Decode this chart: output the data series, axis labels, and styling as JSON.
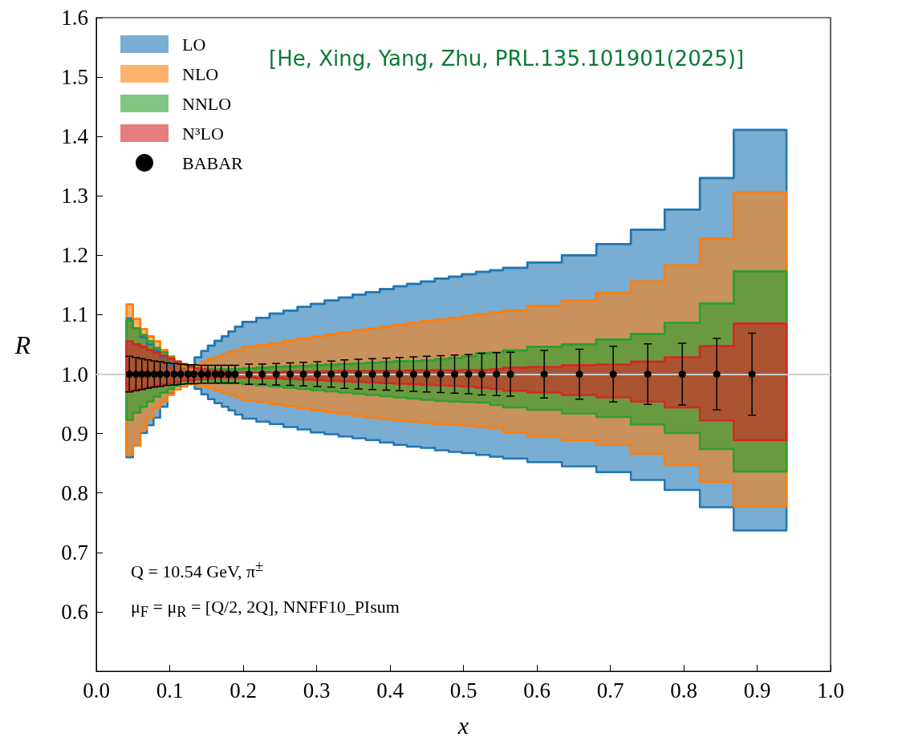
{
  "chart_data": {
    "type": "step",
    "xlabel": "x",
    "ylabel": "R",
    "annotations": [
      "[He, Xing, Yang, Zhu, PRL.135.101901(2025)]",
      "Q = 10.54 GeV, π$^{±}$",
      "μ$_{F}$ = μ$_{R}$ = [Q/2, 2Q], NNFF10_PIsum"
    ],
    "xlim": [
      0,
      1
    ],
    "ylim": [
      0.5,
      1.6
    ],
    "xticks": [
      {
        "value": 0,
        "label": "0.0"
      },
      {
        "value": 0.1,
        "label": "0.1"
      },
      {
        "value": 0.2,
        "label": "0.2"
      },
      {
        "value": 0.3,
        "label": "0.3"
      },
      {
        "value": 0.4,
        "label": "0.4"
      },
      {
        "value": 0.5,
        "label": "0.5"
      },
      {
        "value": 0.6,
        "label": "0.6"
      },
      {
        "value": 0.7,
        "label": "0.7"
      },
      {
        "value": 0.8,
        "label": "0.8"
      },
      {
        "value": 0.9,
        "label": "0.9"
      },
      {
        "value": 1,
        "label": "1.0"
      }
    ],
    "yticks": [
      {
        "value": 0.6,
        "label": "0.6"
      },
      {
        "value": 0.7,
        "label": "0.7"
      },
      {
        "value": 0.8,
        "label": "0.8"
      },
      {
        "value": 0.9,
        "label": "0.9"
      },
      {
        "value": 1,
        "label": "1.0"
      },
      {
        "value": 1.1,
        "label": "1.1"
      },
      {
        "value": 1.2,
        "label": "1.2"
      },
      {
        "value": 1.3,
        "label": "1.3"
      },
      {
        "value": 1.4,
        "label": "1.4"
      },
      {
        "value": 1.5,
        "label": "1.5"
      },
      {
        "value": 1.6,
        "label": "1.6"
      }
    ],
    "legend": "top left",
    "ref_lines": [
      {
        "axis": "y",
        "value": 1,
        "color": "#cccccc"
      }
    ],
    "series": [
      {
        "name": "LO",
        "color": "#1f77b4",
        "x": [
          0.041,
          0.05,
          0.06,
          0.069,
          0.078,
          0.087,
          0.097,
          0.106,
          0.115,
          0.124,
          0.134,
          0.143,
          0.152,
          0.161,
          0.171,
          0.18,
          0.189,
          0.199,
          0.218,
          0.236,
          0.255,
          0.274,
          0.292,
          0.311,
          0.33,
          0.349,
          0.367,
          0.386,
          0.405,
          0.423,
          0.442,
          0.461,
          0.48,
          0.498,
          0.517,
          0.536,
          0.554,
          0.587,
          0.634,
          0.681,
          0.728,
          0.774,
          0.822,
          0.868,
          0.94
        ],
        "values": [
          1.094,
          1.077,
          1.062,
          1.05,
          1.04,
          1.028,
          1.015,
          1.003,
          1.003,
          1.015,
          1.028,
          1.039,
          1.048,
          1.056,
          1.064,
          1.072,
          1.08,
          1.088,
          1.095,
          1.102,
          1.107,
          1.113,
          1.118,
          1.124,
          1.129,
          1.134,
          1.138,
          1.143,
          1.148,
          1.152,
          1.156,
          1.161,
          1.164,
          1.168,
          1.172,
          1.175,
          1.179,
          1.188,
          1.2,
          1.219,
          1.243,
          1.277,
          1.33,
          1.411,
          1.411
        ],
        "upper": [
          1.094,
          1.077,
          1.062,
          1.05,
          1.04,
          1.028,
          1.015,
          1.003,
          1.003,
          1.015,
          1.028,
          1.039,
          1.048,
          1.056,
          1.064,
          1.072,
          1.08,
          1.088,
          1.095,
          1.102,
          1.107,
          1.113,
          1.118,
          1.124,
          1.129,
          1.134,
          1.138,
          1.143,
          1.148,
          1.152,
          1.156,
          1.161,
          1.164,
          1.168,
          1.172,
          1.175,
          1.179,
          1.188,
          1.2,
          1.219,
          1.243,
          1.277,
          1.33,
          1.411,
          1.411
        ],
        "lower": [
          0.86,
          0.88,
          0.901,
          0.914,
          0.927,
          0.945,
          0.968,
          0.983,
          0.99,
          0.985,
          0.975,
          0.966,
          0.958,
          0.951,
          0.945,
          0.939,
          0.932,
          0.925,
          0.92,
          0.916,
          0.911,
          0.907,
          0.902,
          0.899,
          0.895,
          0.892,
          0.889,
          0.885,
          0.881,
          0.878,
          0.876,
          0.872,
          0.869,
          0.867,
          0.864,
          0.861,
          0.858,
          0.852,
          0.845,
          0.835,
          0.822,
          0.805,
          0.776,
          0.737,
          0.737
        ]
      },
      {
        "name": "NLO",
        "color": "#ff7f0e",
        "x": [
          0.041,
          0.05,
          0.06,
          0.069,
          0.078,
          0.087,
          0.097,
          0.106,
          0.115,
          0.124,
          0.134,
          0.143,
          0.152,
          0.161,
          0.171,
          0.18,
          0.189,
          0.199,
          0.218,
          0.236,
          0.255,
          0.274,
          0.292,
          0.311,
          0.33,
          0.349,
          0.367,
          0.386,
          0.405,
          0.423,
          0.442,
          0.461,
          0.48,
          0.498,
          0.517,
          0.536,
          0.554,
          0.587,
          0.634,
          0.681,
          0.728,
          0.774,
          0.822,
          0.868,
          0.94
        ],
        "values": [
          1.117,
          1.093,
          1.076,
          1.064,
          1.055,
          1.041,
          1.03,
          1.021,
          1.013,
          1.008,
          1.015,
          1.021,
          1.026,
          1.03,
          1.034,
          1.038,
          1.041,
          1.046,
          1.049,
          1.052,
          1.056,
          1.06,
          1.063,
          1.067,
          1.07,
          1.074,
          1.077,
          1.08,
          1.083,
          1.086,
          1.089,
          1.092,
          1.095,
          1.098,
          1.101,
          1.104,
          1.107,
          1.115,
          1.124,
          1.137,
          1.156,
          1.183,
          1.228,
          1.306,
          1.306
        ],
        "upper": [
          1.117,
          1.093,
          1.076,
          1.064,
          1.055,
          1.041,
          1.03,
          1.021,
          1.013,
          1.008,
          1.015,
          1.021,
          1.026,
          1.03,
          1.034,
          1.038,
          1.041,
          1.046,
          1.049,
          1.052,
          1.056,
          1.06,
          1.063,
          1.067,
          1.07,
          1.074,
          1.077,
          1.08,
          1.083,
          1.086,
          1.089,
          1.092,
          1.095,
          1.098,
          1.101,
          1.104,
          1.107,
          1.115,
          1.124,
          1.137,
          1.156,
          1.183,
          1.228,
          1.306,
          1.306
        ],
        "lower": [
          0.864,
          0.88,
          0.907,
          0.927,
          0.943,
          0.954,
          0.965,
          0.974,
          0.979,
          0.983,
          0.982,
          0.979,
          0.976,
          0.972,
          0.968,
          0.965,
          0.961,
          0.956,
          0.953,
          0.949,
          0.946,
          0.943,
          0.939,
          0.936,
          0.933,
          0.93,
          0.927,
          0.924,
          0.922,
          0.92,
          0.918,
          0.916,
          0.915,
          0.913,
          0.911,
          0.909,
          0.902,
          0.895,
          0.889,
          0.881,
          0.866,
          0.847,
          0.819,
          0.777,
          0.777
        ]
      },
      {
        "name": "NNLO",
        "color": "#2ca02c",
        "x": [
          0.041,
          0.05,
          0.06,
          0.069,
          0.078,
          0.087,
          0.097,
          0.106,
          0.115,
          0.124,
          0.134,
          0.143,
          0.152,
          0.161,
          0.171,
          0.18,
          0.189,
          0.199,
          0.218,
          0.236,
          0.255,
          0.274,
          0.292,
          0.311,
          0.33,
          0.349,
          0.367,
          0.386,
          0.405,
          0.423,
          0.442,
          0.461,
          0.48,
          0.498,
          0.517,
          0.536,
          0.554,
          0.587,
          0.634,
          0.681,
          0.728,
          0.774,
          0.822,
          0.868,
          0.94
        ],
        "values": [
          1.09,
          1.077,
          1.066,
          1.055,
          1.044,
          1.037,
          1.028,
          1.021,
          1.016,
          1.013,
          1.01,
          1.009,
          1.009,
          1.008,
          1.008,
          1.008,
          1.008,
          1.01,
          1.011,
          1.012,
          1.013,
          1.014,
          1.015,
          1.016,
          1.017,
          1.018,
          1.019,
          1.02,
          1.022,
          1.022,
          1.023,
          1.025,
          1.027,
          1.03,
          1.035,
          1.036,
          1.04,
          1.046,
          1.05,
          1.058,
          1.068,
          1.086,
          1.119,
          1.173,
          1.173
        ],
        "upper": [
          1.09,
          1.077,
          1.066,
          1.055,
          1.044,
          1.037,
          1.028,
          1.021,
          1.016,
          1.013,
          1.01,
          1.009,
          1.009,
          1.008,
          1.008,
          1.008,
          1.008,
          1.01,
          1.011,
          1.012,
          1.013,
          1.014,
          1.015,
          1.016,
          1.017,
          1.018,
          1.019,
          1.02,
          1.022,
          1.022,
          1.023,
          1.025,
          1.027,
          1.03,
          1.035,
          1.036,
          1.04,
          1.046,
          1.05,
          1.058,
          1.068,
          1.086,
          1.119,
          1.173,
          1.173
        ],
        "lower": [
          0.923,
          0.935,
          0.945,
          0.954,
          0.962,
          0.969,
          0.975,
          0.98,
          0.984,
          0.988,
          0.99,
          0.99,
          0.989,
          0.988,
          0.987,
          0.986,
          0.985,
          0.983,
          0.981,
          0.979,
          0.977,
          0.975,
          0.973,
          0.971,
          0.969,
          0.967,
          0.965,
          0.963,
          0.961,
          0.959,
          0.957,
          0.955,
          0.954,
          0.953,
          0.952,
          0.948,
          0.944,
          0.94,
          0.934,
          0.928,
          0.915,
          0.901,
          0.874,
          0.836,
          0.836
        ]
      },
      {
        "name": "N³LO",
        "color": "#d62728",
        "x": [
          0.041,
          0.05,
          0.06,
          0.069,
          0.078,
          0.087,
          0.097,
          0.106,
          0.115,
          0.124,
          0.134,
          0.143,
          0.152,
          0.161,
          0.171,
          0.18,
          0.189,
          0.199,
          0.218,
          0.236,
          0.255,
          0.274,
          0.292,
          0.311,
          0.33,
          0.349,
          0.367,
          0.386,
          0.405,
          0.423,
          0.442,
          0.461,
          0.48,
          0.498,
          0.517,
          0.536,
          0.554,
          0.587,
          0.634,
          0.681,
          0.728,
          0.774,
          0.822,
          0.868,
          0.94
        ],
        "values": [
          1.055,
          1.05,
          1.046,
          1.041,
          1.037,
          1.031,
          1.026,
          1.021,
          1.017,
          1.014,
          1.01,
          1.008,
          1.006,
          1.005,
          1.004,
          1.003,
          1.003,
          1.003,
          1.003,
          1.003,
          1.004,
          1.004,
          1.004,
          1.004,
          1.005,
          1.005,
          1.005,
          1.005,
          1.005,
          1.006,
          1.006,
          1.006,
          1.006,
          1.007,
          1.007,
          1.008,
          1.011,
          1.012,
          1.015,
          1.016,
          1.021,
          1.028,
          1.047,
          1.085,
          1.085
        ],
        "upper": [
          1.055,
          1.05,
          1.046,
          1.041,
          1.037,
          1.031,
          1.026,
          1.021,
          1.017,
          1.014,
          1.01,
          1.008,
          1.006,
          1.005,
          1.004,
          1.003,
          1.003,
          1.003,
          1.003,
          1.003,
          1.004,
          1.004,
          1.004,
          1.004,
          1.005,
          1.005,
          1.005,
          1.005,
          1.005,
          1.006,
          1.006,
          1.006,
          1.006,
          1.007,
          1.007,
          1.008,
          1.011,
          1.012,
          1.015,
          1.016,
          1.021,
          1.028,
          1.047,
          1.085,
          1.085
        ],
        "lower": [
          0.972,
          0.974,
          0.976,
          0.978,
          0.981,
          0.983,
          0.985,
          0.987,
          0.989,
          0.99,
          0.991,
          0.992,
          0.993,
          0.994,
          0.994,
          0.994,
          0.994,
          0.994,
          0.993,
          0.993,
          0.992,
          0.991,
          0.99,
          0.989,
          0.988,
          0.987,
          0.986,
          0.985,
          0.984,
          0.983,
          0.982,
          0.981,
          0.98,
          0.979,
          0.977,
          0.975,
          0.972,
          0.969,
          0.965,
          0.961,
          0.954,
          0.944,
          0.922,
          0.889,
          0.889
        ]
      },
      {
        "name": "BABAR",
        "type": "scatter",
        "marker": "circle",
        "color": "#000000",
        "x": [
          0.045,
          0.054,
          0.062,
          0.07,
          0.079,
          0.087,
          0.096,
          0.106,
          0.115,
          0.125,
          0.133,
          0.143,
          0.152,
          0.162,
          0.17,
          0.18,
          0.189,
          0.208,
          0.226,
          0.245,
          0.264,
          0.282,
          0.301,
          0.32,
          0.338,
          0.357,
          0.376,
          0.395,
          0.413,
          0.432,
          0.45,
          0.469,
          0.488,
          0.507,
          0.525,
          0.545,
          0.564,
          0.61,
          0.658,
          0.704,
          0.751,
          0.798,
          0.845,
          0.893
        ],
        "values": [
          1,
          1,
          1,
          1,
          1,
          1,
          1,
          1,
          1,
          1,
          1,
          1,
          1,
          1,
          1,
          1,
          1,
          1,
          1,
          1,
          1,
          1,
          1,
          1,
          1,
          1,
          1,
          1,
          1,
          1,
          1,
          1,
          1,
          1,
          1,
          1,
          1,
          1,
          1,
          1,
          1,
          1,
          1,
          1
        ],
        "errors": [
          0.03,
          0.028,
          0.026,
          0.024,
          0.022,
          0.021,
          0.019,
          0.018,
          0.017,
          0.016,
          0.016,
          0.015,
          0.015,
          0.015,
          0.015,
          0.015,
          0.015,
          0.017,
          0.017,
          0.018,
          0.019,
          0.02,
          0.021,
          0.022,
          0.024,
          0.025,
          0.026,
          0.027,
          0.028,
          0.029,
          0.03,
          0.031,
          0.032,
          0.033,
          0.035,
          0.036,
          0.037,
          0.04,
          0.042,
          0.047,
          0.051,
          0.052,
          0.06,
          0.069
        ]
      }
    ]
  }
}
